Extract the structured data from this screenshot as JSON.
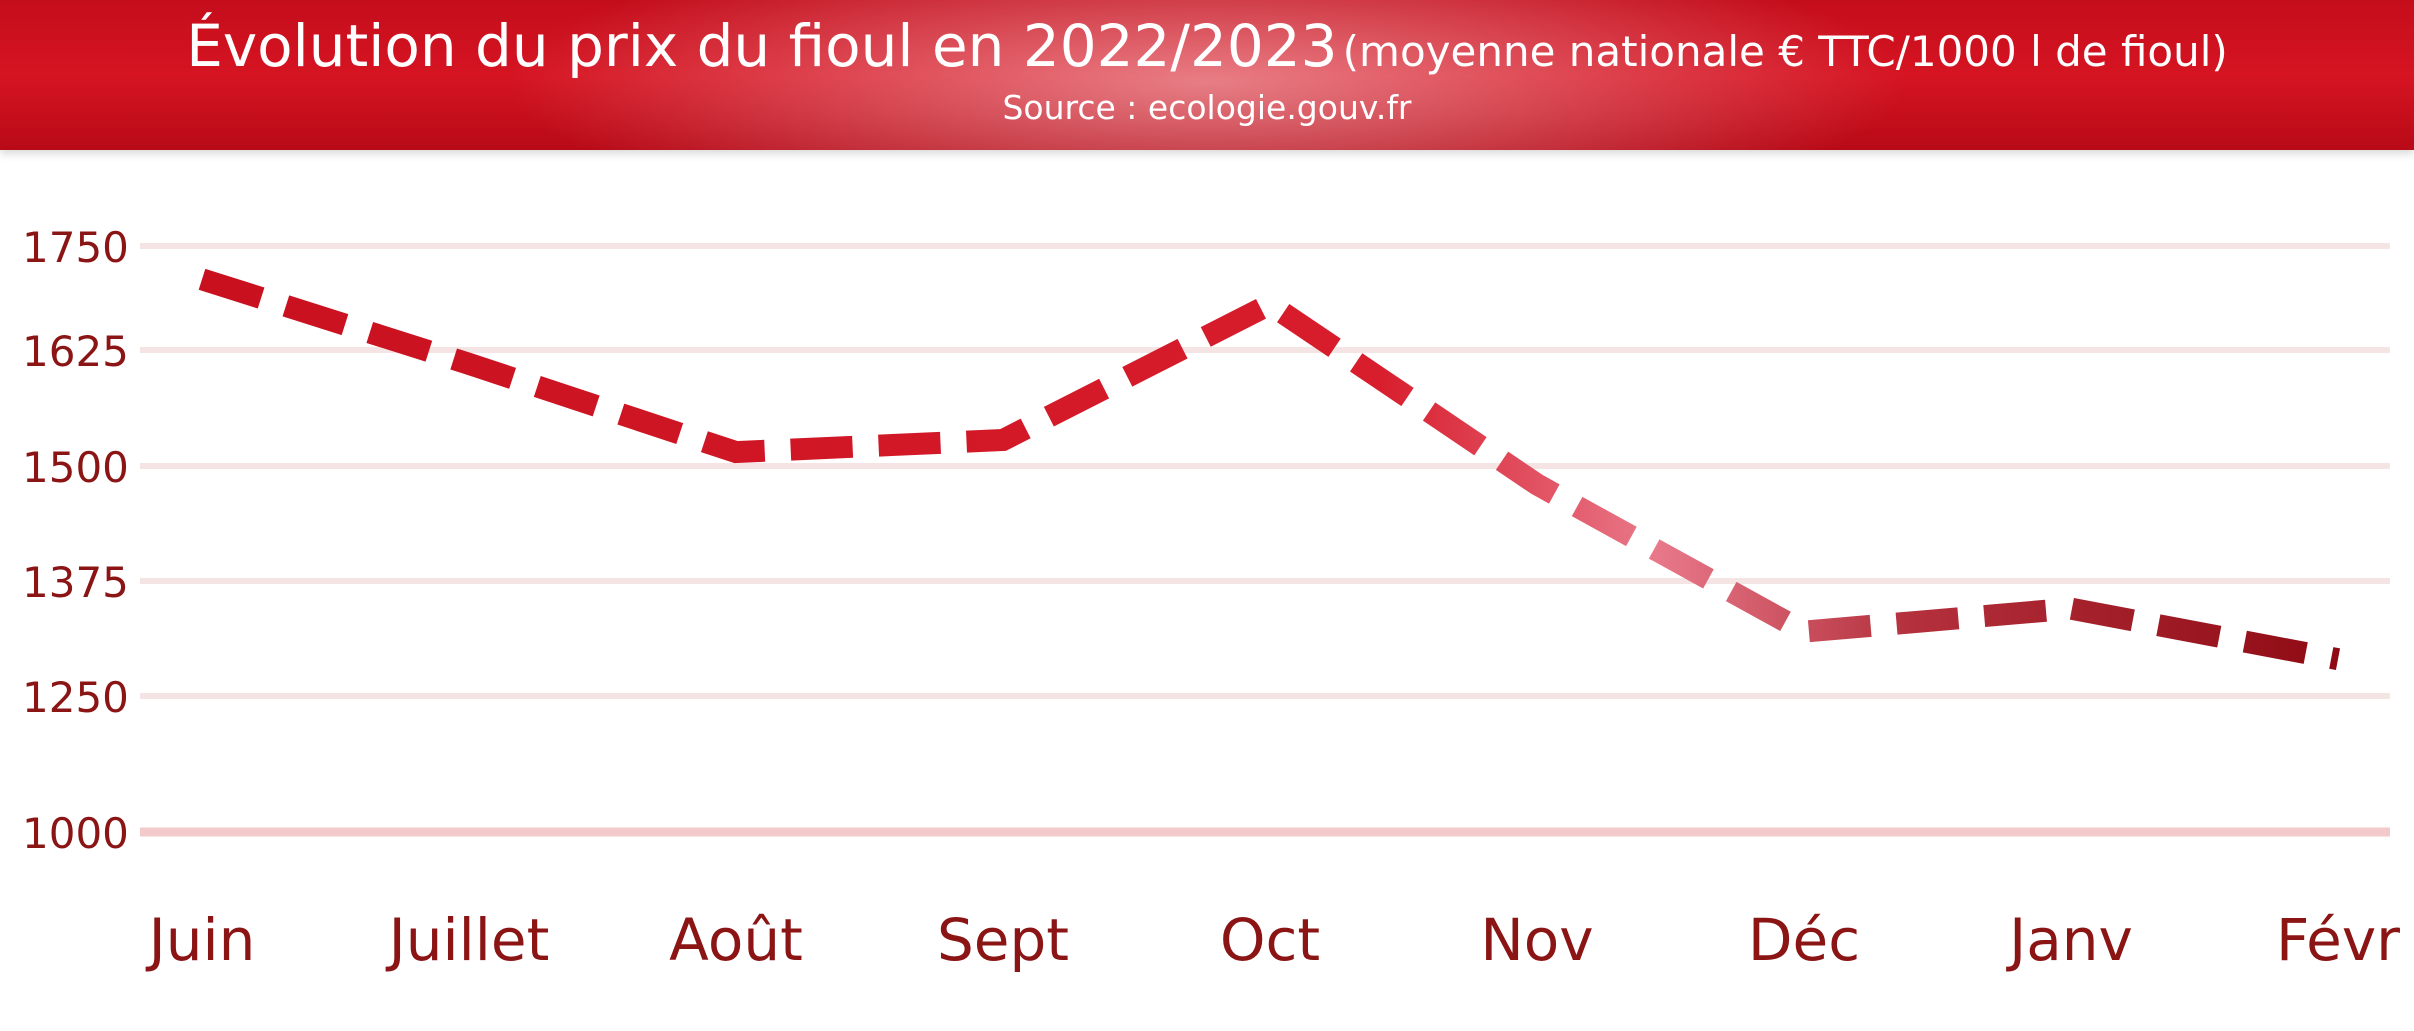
{
  "chart_data": {
    "type": "line",
    "title": "Évolution du prix du fioul en 2022/2023",
    "title_unit": "(moyenne nationale € TTC/1000 l de fioul)",
    "subtitle": "Source : ecologie.gouv.fr",
    "categories": [
      "Juin",
      "Juillet",
      "Août",
      "Sept",
      "Oct",
      "Nov",
      "Déc",
      "Janv",
      "Févr"
    ],
    "series": [
      {
        "values": [
          1710,
          1610,
          1515,
          1528,
          1680,
          1480,
          1320,
          1345,
          1290
        ]
      }
    ],
    "y_ticks": [
      1000,
      1250,
      1375,
      1500,
      1625,
      1750
    ],
    "xlabel": "",
    "ylabel": "",
    "grid": true,
    "legend": "none",
    "line_style": "dashed"
  },
  "colors": {
    "banner": "#c8101e",
    "line_dark": "#b50f1e",
    "line_light": "#e8798a",
    "line_end": "#8f0a13",
    "axis_text": "#8b1414",
    "grid": "#f5e4e4",
    "baseline": "#f3caca"
  }
}
